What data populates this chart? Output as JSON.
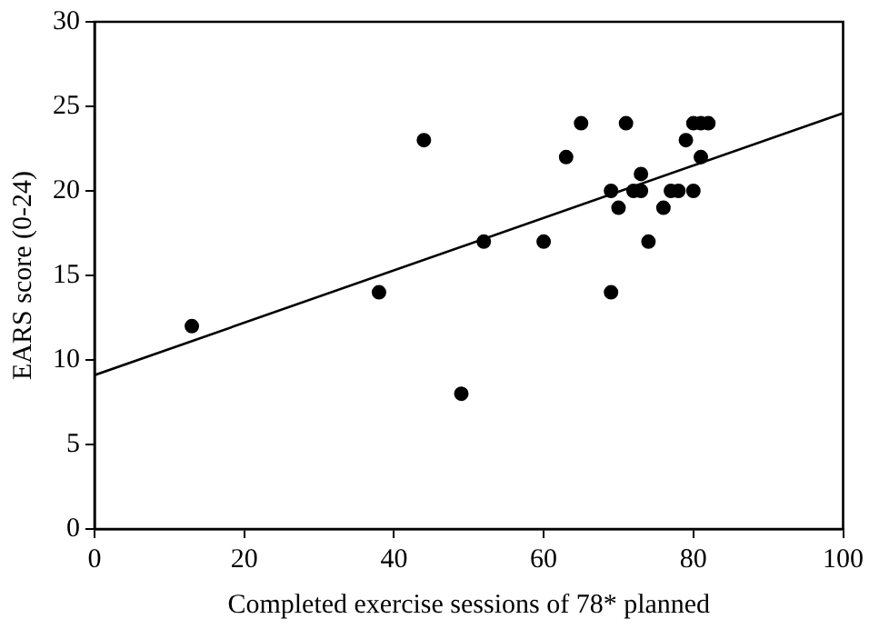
{
  "chart_data": {
    "type": "scatter",
    "xlabel": "Completed exercise sessions of 78* planned",
    "ylabel": "EARS score (0-24)",
    "xlim": [
      0,
      100
    ],
    "xticks": [
      0,
      20,
      40,
      60,
      80,
      100
    ],
    "ylim": [
      0,
      30
    ],
    "yticks": [
      0,
      5,
      10,
      15,
      20,
      25,
      30
    ],
    "grid": false,
    "legend": false,
    "marker": "circle",
    "series": [
      {
        "color": "#000000",
        "x": [
          13,
          38,
          44,
          49,
          52,
          60,
          63,
          65,
          69,
          69,
          70,
          71,
          72,
          73,
          73,
          74,
          76,
          77,
          78,
          79,
          80,
          80,
          81,
          81,
          82
        ],
        "values": [
          12,
          14,
          23,
          8,
          17,
          17,
          22,
          24,
          20,
          14,
          19,
          24,
          20,
          20,
          21,
          17,
          19,
          20,
          20,
          23,
          24,
          20,
          24,
          22,
          24
        ]
      },
      {
        "type": "line",
        "color": "#000000",
        "marker": "none",
        "x": [
          0,
          100
        ],
        "values": [
          9.1,
          24.6
        ]
      }
    ]
  }
}
